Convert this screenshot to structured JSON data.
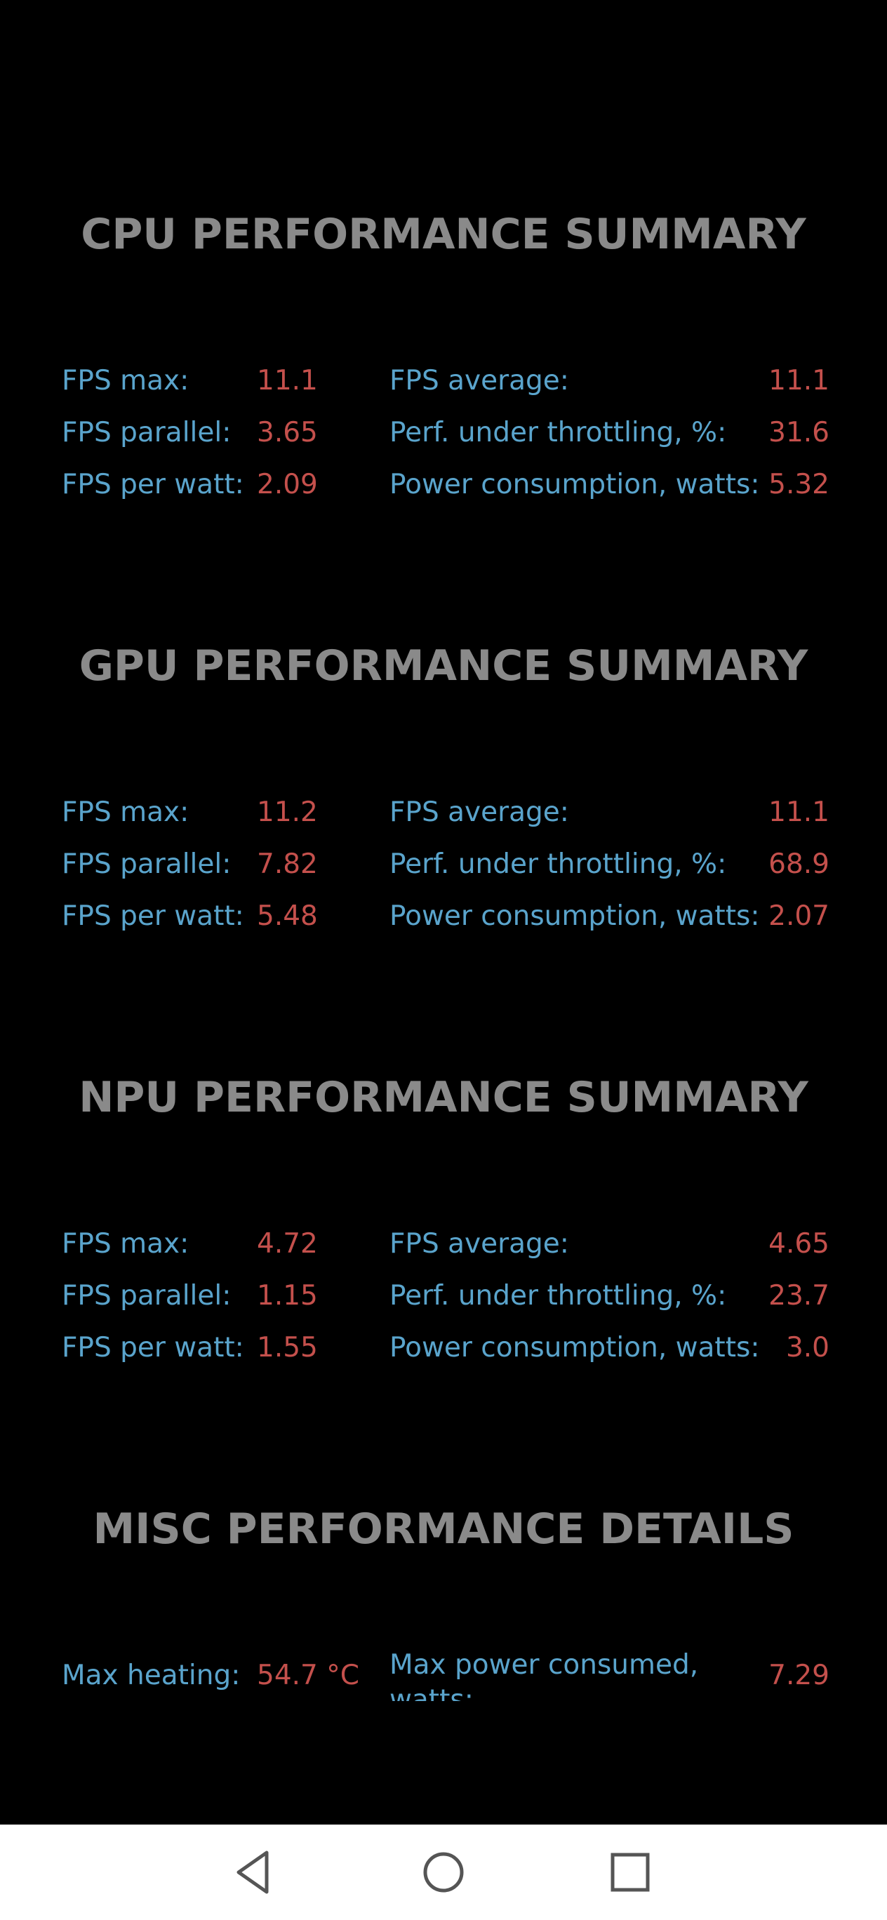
{
  "sections": [
    {
      "title": "CPU PERFORMANCE SUMMARY",
      "rows": [
        {
          "l1": "FPS max:",
          "v1": "11.1",
          "l2": "FPS average:",
          "v2": "11.1"
        },
        {
          "l1": "FPS parallel:",
          "v1": "3.65",
          "l2": "Perf. under throttling, %:",
          "v2": "31.6"
        },
        {
          "l1": "FPS per watt:",
          "v1": "2.09",
          "l2": "Power consumption, watts:",
          "v2": "5.32"
        }
      ]
    },
    {
      "title": "GPU PERFORMANCE SUMMARY",
      "rows": [
        {
          "l1": "FPS max:",
          "v1": "11.2",
          "l2": "FPS average:",
          "v2": "11.1"
        },
        {
          "l1": "FPS parallel:",
          "v1": "7.82",
          "l2": "Perf. under throttling, %:",
          "v2": "68.9"
        },
        {
          "l1": "FPS per watt:",
          "v1": "5.48",
          "l2": "Power consumption, watts:",
          "v2": "2.07"
        }
      ]
    },
    {
      "title": "NPU PERFORMANCE SUMMARY",
      "rows": [
        {
          "l1": "FPS max:",
          "v1": "4.72",
          "l2": "FPS average:",
          "v2": "4.65"
        },
        {
          "l1": "FPS parallel:",
          "v1": "1.15",
          "l2": "Perf. under throttling, %:",
          "v2": "23.7"
        },
        {
          "l1": "FPS per watt:",
          "v1": "1.55",
          "l2": "Power consumption, watts:",
          "v2": "3.0"
        }
      ]
    },
    {
      "title": "MISC PERFORMANCE DETAILS",
      "rows": [
        {
          "l1": "Max heating:",
          "v1": "54.7 °C",
          "l2": "Max power consumed, watts:",
          "v2": "7.29"
        }
      ]
    }
  ],
  "navbar": {
    "back": "back-triangle-icon",
    "home": "home-circle-icon",
    "recents": "recents-square-icon"
  },
  "colors": {
    "background": "#000000",
    "title": "#8a8a8a",
    "label": "#5aa4cc",
    "value": "#c4504c",
    "navbar": "#ffffff"
  }
}
